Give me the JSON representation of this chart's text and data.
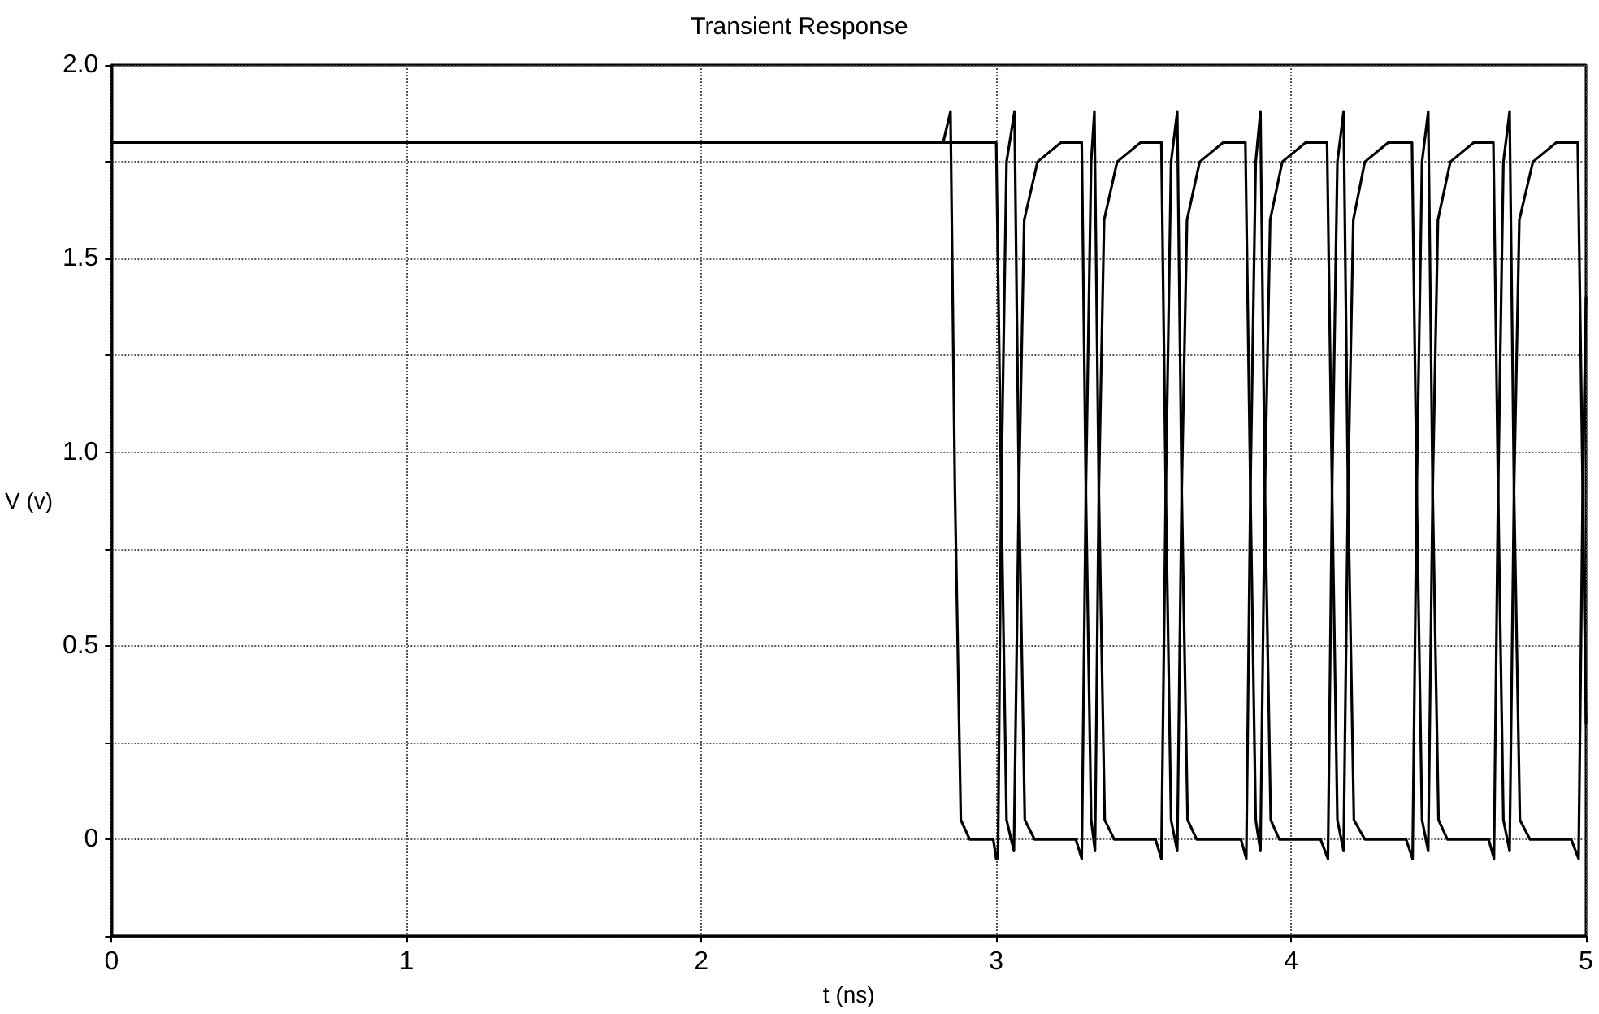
{
  "chart_data": {
    "type": "line",
    "title": "Transient Response",
    "xlabel": "t (ns)",
    "ylabel": "V (v)",
    "xlim": [
      0,
      5
    ],
    "xticks": [
      0,
      1,
      2,
      3,
      4,
      5
    ],
    "ylim": [
      -0.25,
      2.0
    ],
    "yticks": [
      {
        "value": -0.25,
        "label": null
      },
      0,
      {
        "value": 0.25,
        "label": null
      },
      0.5,
      {
        "value": 0.75,
        "label": null
      },
      {
        "value": 1.0,
        "label": "1.0"
      },
      {
        "value": 1.25,
        "label": null
      },
      1.5,
      {
        "value": 1.75,
        "label": null
      },
      {
        "value": 2.0,
        "label": "2.0"
      }
    ],
    "grid": true,
    "marker": "none",
    "line_style": "solid",
    "series": [
      {
        "color": "#000000",
        "x": [
          0,
          2.82,
          2.845,
          2.86,
          2.88,
          2.91,
          2.99,
          3.0,
          3.006,
          3.017,
          3.035,
          3.062,
          3.077,
          3.097,
          3.13,
          3.27,
          3.29,
          3.304,
          3.322,
          3.333,
          3.348,
          3.368,
          3.4,
          3.54,
          3.56,
          3.575,
          3.593,
          3.614,
          3.629,
          3.649,
          3.68,
          3.83,
          3.848,
          3.862,
          3.88,
          3.896,
          3.911,
          3.931,
          3.96,
          4.1,
          4.125,
          4.139,
          4.157,
          4.178,
          4.193,
          4.213,
          4.25,
          4.39,
          4.412,
          4.426,
          4.444,
          4.465,
          4.48,
          4.5,
          4.53,
          4.67,
          4.688,
          4.702,
          4.72,
          4.741,
          4.756,
          4.776,
          4.81,
          4.95,
          4.975,
          4.989,
          5.0
        ],
        "values": [
          1.8,
          1.8,
          1.88,
          0.9,
          0.05,
          0,
          0,
          -0.05,
          -0.05,
          0.9,
          1.75,
          1.88,
          0.9,
          0.05,
          0,
          0,
          -0.05,
          0.9,
          1.75,
          1.88,
          0.9,
          0.05,
          0,
          0,
          -0.05,
          0.9,
          1.75,
          1.88,
          0.9,
          0.05,
          0,
          0,
          -0.05,
          0.9,
          1.75,
          1.88,
          0.9,
          0.05,
          0,
          0,
          -0.05,
          0.9,
          1.75,
          1.88,
          0.9,
          0.05,
          0,
          0,
          -0.05,
          0.9,
          1.75,
          1.88,
          0.9,
          0.05,
          0,
          0,
          -0.05,
          0.9,
          1.75,
          1.88,
          0.9,
          0.05,
          0,
          0,
          -0.05,
          0.9,
          1.4
        ]
      },
      {
        "color": "#000000",
        "x": [
          0,
          3.0,
          3.017,
          3.035,
          3.06,
          3.077,
          3.095,
          3.14,
          3.22,
          3.29,
          3.304,
          3.322,
          3.335,
          3.348,
          3.366,
          3.41,
          3.49,
          3.56,
          3.575,
          3.593,
          3.614,
          3.629,
          3.647,
          3.69,
          3.77,
          3.845,
          3.862,
          3.88,
          3.896,
          3.911,
          3.929,
          3.97,
          4.05,
          4.122,
          4.139,
          4.157,
          4.178,
          4.193,
          4.211,
          4.25,
          4.33,
          4.41,
          4.426,
          4.444,
          4.465,
          4.48,
          4.498,
          4.54,
          4.62,
          4.686,
          4.702,
          4.72,
          4.741,
          4.756,
          4.774,
          4.82,
          4.9,
          4.972,
          4.989,
          5.0
        ],
        "values": [
          1.8,
          1.8,
          0.9,
          0.05,
          -0.03,
          0.9,
          1.6,
          1.75,
          1.8,
          1.8,
          0.9,
          0.05,
          -0.03,
          0.9,
          1.6,
          1.75,
          1.8,
          1.8,
          0.9,
          0.05,
          -0.03,
          0.9,
          1.6,
          1.75,
          1.8,
          1.8,
          0.9,
          0.05,
          -0.03,
          0.9,
          1.6,
          1.75,
          1.8,
          1.8,
          0.9,
          0.05,
          -0.03,
          0.9,
          1.6,
          1.75,
          1.8,
          1.8,
          0.9,
          0.05,
          -0.03,
          0.9,
          1.6,
          1.75,
          1.8,
          1.8,
          0.9,
          0.05,
          -0.03,
          0.9,
          1.6,
          1.75,
          1.8,
          1.8,
          0.9,
          0.3
        ]
      }
    ]
  }
}
